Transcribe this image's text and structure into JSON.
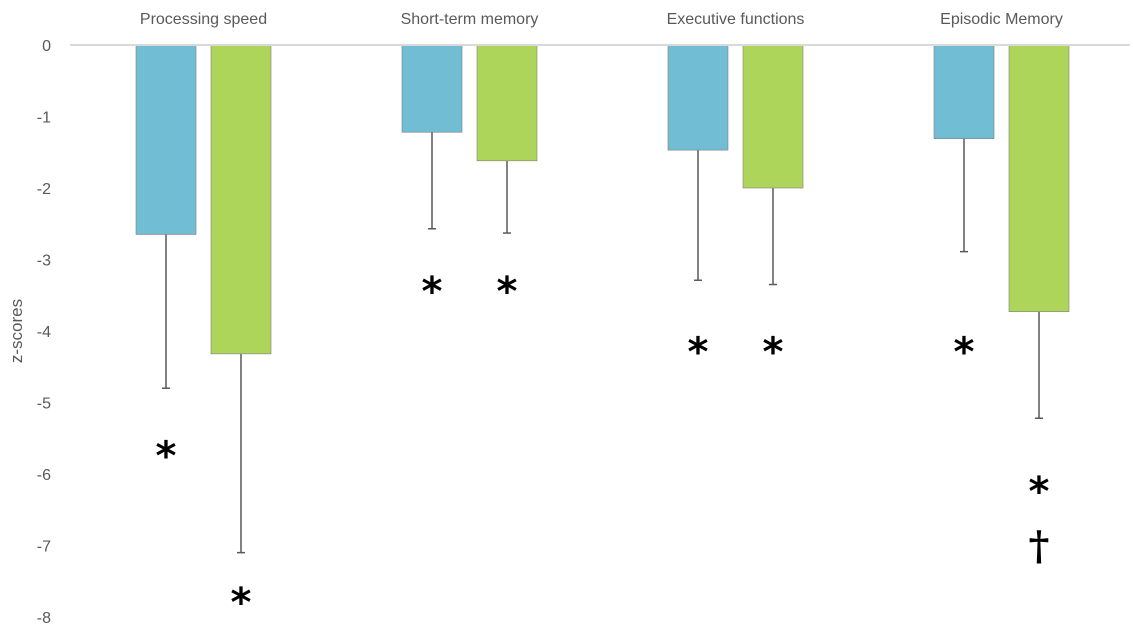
{
  "chart_data": {
    "type": "bar",
    "orientation": "vertical",
    "categories": [
      "Processing speed",
      "Short-term memory",
      "Executive functions",
      "Episodic Memory"
    ],
    "category_label_position": "top",
    "series": [
      {
        "color": "#70BDD4",
        "values": [
          -2.65,
          -1.22,
          -1.47,
          -1.31
        ],
        "error_lower": [
          -4.8,
          -2.57,
          -3.29,
          -2.89
        ],
        "annotations": [
          [
            "*"
          ],
          [
            "*"
          ],
          [
            "*"
          ],
          [
            "*"
          ]
        ],
        "annotation_values": [
          [
            -5.6
          ],
          [
            -3.3
          ],
          [
            -4.15
          ],
          [
            -4.15
          ]
        ]
      },
      {
        "color": "#ADD55A",
        "values": [
          -4.32,
          -1.62,
          -2.0,
          -3.73
        ],
        "error_lower": [
          -7.1,
          -2.63,
          -3.35,
          -5.22
        ],
        "annotations": [
          [
            "*"
          ],
          [
            "*"
          ],
          [
            "*"
          ],
          [
            "*",
            "†"
          ]
        ],
        "annotation_values": [
          [
            -7.65
          ],
          [
            -3.3
          ],
          [
            -4.15
          ],
          [
            -6.1,
            -7.0
          ]
        ]
      }
    ],
    "y_ticks": [
      "0",
      "-1",
      "-2",
      "-3",
      "-4",
      "-5",
      "-6",
      "-7",
      "-8"
    ],
    "ylabel": "z-scores",
    "xlabel": "",
    "title": "",
    "ylim": [
      -8,
      0
    ],
    "grid": false,
    "legend": "none"
  }
}
